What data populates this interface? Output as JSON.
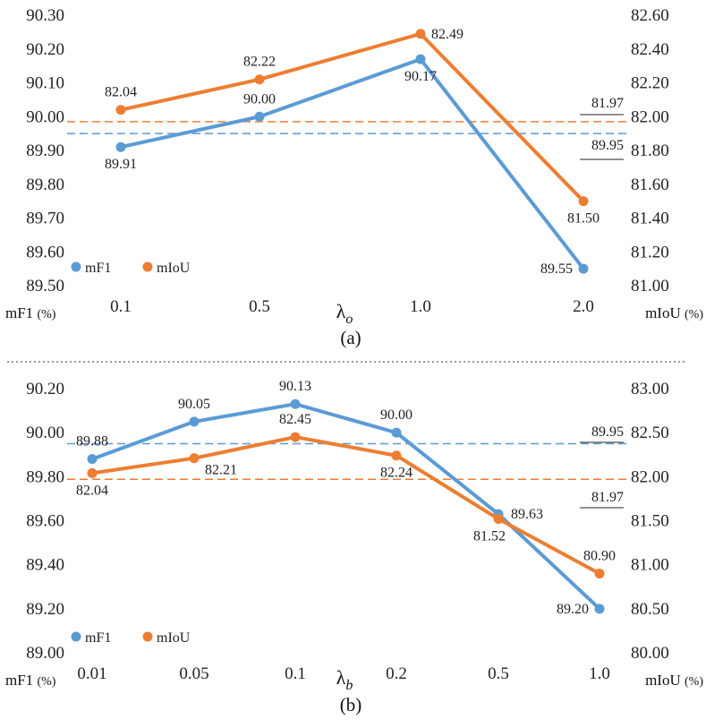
{
  "colors": {
    "mf1": "#5b9bd5",
    "miou": "#ed7d31"
  },
  "divider": {
    "style": "dotted"
  },
  "chart_data": [
    {
      "type": "line",
      "caption": "(a)",
      "x_symbol": "λ",
      "x_subscript": "o",
      "categories": [
        "0.1",
        "0.5",
        "1.0",
        "2.0"
      ],
      "y_left": {
        "label": "mF1",
        "unit": "(%)",
        "min": 89.5,
        "max": 90.3,
        "step": 0.1,
        "ticks": [
          "89.50",
          "89.60",
          "89.70",
          "89.80",
          "89.90",
          "90.00",
          "90.10",
          "90.20",
          "90.30"
        ]
      },
      "y_right": {
        "label": "mIoU",
        "unit": "(%)",
        "min": 81.0,
        "max": 82.6,
        "step": 0.2,
        "ticks": [
          "81.00",
          "81.20",
          "81.40",
          "81.60",
          "81.80",
          "82.00",
          "82.20",
          "82.40",
          "82.60"
        ]
      },
      "series": [
        {
          "name": "mF1",
          "axis": "left",
          "values": [
            89.91,
            90.0,
            90.17,
            89.55
          ],
          "labels": [
            "89.91",
            "90.00",
            "90.17",
            "89.55"
          ]
        },
        {
          "name": "mIoU",
          "axis": "right",
          "values": [
            82.04,
            82.22,
            82.49,
            81.5
          ],
          "labels": [
            "82.04",
            "82.22",
            "82.49",
            "81.50"
          ]
        }
      ],
      "reference_lines": [
        {
          "series": "mF1",
          "axis": "left",
          "value": 89.95,
          "label": "89.95"
        },
        {
          "series": "mIoU",
          "axis": "right",
          "value": 81.97,
          "label": "81.97"
        }
      ],
      "legend": {
        "position": "bottom-left",
        "entries": [
          "mF1",
          "mIoU"
        ]
      }
    },
    {
      "type": "line",
      "caption": "(b)",
      "x_symbol": "λ",
      "x_subscript": "b",
      "categories": [
        "0.01",
        "0.05",
        "0.1",
        "0.2",
        "0.5",
        "1.0"
      ],
      "y_left": {
        "label": "mF1",
        "unit": "(%)",
        "min": 89.0,
        "max": 90.2,
        "step": 0.2,
        "ticks": [
          "89.00",
          "89.20",
          "89.40",
          "89.60",
          "89.80",
          "90.00",
          "90.20"
        ]
      },
      "y_right": {
        "label": "mIoU",
        "unit": "(%)",
        "min": 80.0,
        "max": 83.0,
        "step": 0.5,
        "ticks": [
          "80.00",
          "80.50",
          "81.00",
          "81.50",
          "82.00",
          "82.50",
          "83.00"
        ]
      },
      "series": [
        {
          "name": "mF1",
          "axis": "left",
          "values": [
            89.88,
            90.05,
            90.13,
            90.0,
            89.63,
            89.2
          ],
          "labels": [
            "89.88",
            "90.05",
            "90.13",
            "90.00",
            "89.63",
            "89.20"
          ]
        },
        {
          "name": "mIoU",
          "axis": "right",
          "values": [
            82.04,
            82.21,
            82.45,
            82.24,
            81.52,
            80.9
          ],
          "labels": [
            "82.04",
            "82.21",
            "82.45",
            "82.24",
            "81.52",
            "80.90"
          ]
        }
      ],
      "reference_lines": [
        {
          "series": "mF1",
          "axis": "left",
          "value": 89.95,
          "label": "89.95"
        },
        {
          "series": "mIoU",
          "axis": "right",
          "value": 81.97,
          "label": "81.97"
        }
      ],
      "legend": {
        "position": "bottom-left",
        "entries": [
          "mF1",
          "mIoU"
        ]
      }
    }
  ]
}
